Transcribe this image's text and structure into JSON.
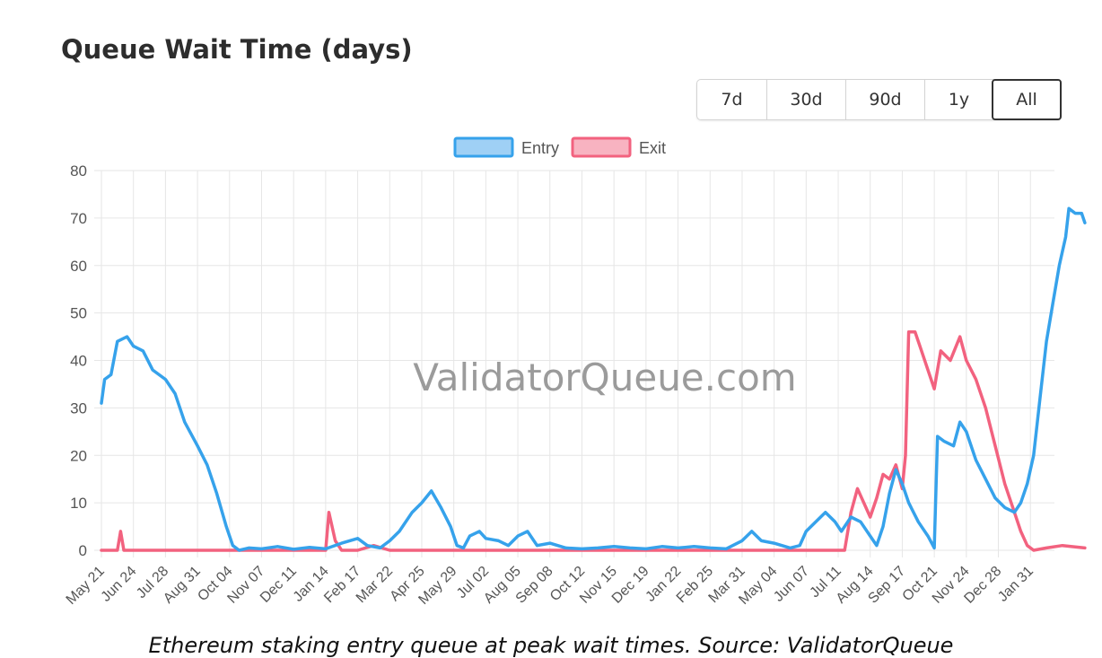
{
  "header": {
    "title": "Queue Wait Time (days)"
  },
  "range_buttons": [
    {
      "label": "7d",
      "active": false
    },
    {
      "label": "30d",
      "active": false
    },
    {
      "label": "90d",
      "active": false
    },
    {
      "label": "1y",
      "active": false
    },
    {
      "label": "All",
      "active": true
    }
  ],
  "watermark": "ValidatorQueue.com",
  "caption": "Ethereum staking entry queue at peak wait times. Source: ValidatorQueue",
  "colors": {
    "entry": "#36a2eb",
    "exit": "#f2627f",
    "grid": "#e6e6e6",
    "axis_text": "#555555"
  },
  "chart_data": {
    "type": "line",
    "ylim": [
      0,
      80
    ],
    "y_ticks": [
      0,
      10,
      20,
      30,
      40,
      50,
      60,
      70,
      80
    ],
    "x_tick_labels": [
      "May 21",
      "Jun 24",
      "Jul 28",
      "Aug 31",
      "Oct 04",
      "Nov 07",
      "Dec 11",
      "Jan 14",
      "Feb 17",
      "Mar 22",
      "Apr 25",
      "May 29",
      "Jul 02",
      "Aug 05",
      "Sep 08",
      "Oct 12",
      "Nov 15",
      "Dec 19",
      "Jan 22",
      "Feb 25",
      "Mar 31",
      "May 04",
      "Jun 07",
      "Jul 11",
      "Aug 14",
      "Sep 17",
      "Oct 21",
      "Nov 24",
      "Dec 28",
      "Jan 31"
    ],
    "legend_position": "top",
    "grid": true,
    "series": [
      {
        "name": "Entry",
        "points": [
          [
            0,
            31
          ],
          [
            0.1,
            36
          ],
          [
            0.3,
            37
          ],
          [
            0.5,
            44
          ],
          [
            0.8,
            45
          ],
          [
            1,
            43
          ],
          [
            1.3,
            42
          ],
          [
            1.6,
            38
          ],
          [
            2,
            36
          ],
          [
            2.3,
            33
          ],
          [
            2.6,
            27
          ],
          [
            3,
            22
          ],
          [
            3.3,
            18
          ],
          [
            3.6,
            12
          ],
          [
            3.9,
            5
          ],
          [
            4.1,
            1
          ],
          [
            4.3,
            0
          ],
          [
            4.6,
            0.5
          ],
          [
            5,
            0.3
          ],
          [
            5.5,
            0.8
          ],
          [
            6,
            0.2
          ],
          [
            6.5,
            0.6
          ],
          [
            7,
            0.3
          ],
          [
            7.5,
            1.5
          ],
          [
            8,
            2.5
          ],
          [
            8.3,
            1
          ],
          [
            8.7,
            0.5
          ],
          [
            9,
            2
          ],
          [
            9.3,
            4
          ],
          [
            9.7,
            8
          ],
          [
            10,
            10
          ],
          [
            10.3,
            12.5
          ],
          [
            10.6,
            9
          ],
          [
            10.9,
            5
          ],
          [
            11.1,
            1
          ],
          [
            11.3,
            0.5
          ],
          [
            11.5,
            3
          ],
          [
            11.8,
            4
          ],
          [
            12,
            2.5
          ],
          [
            12.4,
            2
          ],
          [
            12.7,
            1
          ],
          [
            13,
            3
          ],
          [
            13.3,
            4
          ],
          [
            13.6,
            1
          ],
          [
            14,
            1.5
          ],
          [
            14.5,
            0.5
          ],
          [
            15,
            0.3
          ],
          [
            15.5,
            0.5
          ],
          [
            16,
            0.8
          ],
          [
            16.5,
            0.5
          ],
          [
            17,
            0.3
          ],
          [
            17.5,
            0.8
          ],
          [
            18,
            0.5
          ],
          [
            18.5,
            0.8
          ],
          [
            19,
            0.5
          ],
          [
            19.5,
            0.3
          ],
          [
            20,
            2
          ],
          [
            20.3,
            4
          ],
          [
            20.6,
            2
          ],
          [
            21,
            1.5
          ],
          [
            21.5,
            0.5
          ],
          [
            21.8,
            1
          ],
          [
            22,
            4
          ],
          [
            22.3,
            6
          ],
          [
            22.6,
            8
          ],
          [
            22.9,
            6
          ],
          [
            23.1,
            4
          ],
          [
            23.4,
            7
          ],
          [
            23.7,
            6
          ],
          [
            24,
            3
          ],
          [
            24.2,
            1
          ],
          [
            24.4,
            5
          ],
          [
            24.6,
            12
          ],
          [
            24.8,
            17
          ],
          [
            25,
            14
          ],
          [
            25.2,
            10
          ],
          [
            25.5,
            6
          ],
          [
            25.8,
            3
          ],
          [
            26,
            0.5
          ],
          [
            26.1,
            24
          ],
          [
            26.3,
            23
          ],
          [
            26.6,
            22
          ],
          [
            26.8,
            27
          ],
          [
            27,
            25
          ],
          [
            27.3,
            19
          ],
          [
            27.6,
            15
          ],
          [
            27.9,
            11
          ],
          [
            28.2,
            9
          ],
          [
            28.5,
            8
          ],
          [
            28.7,
            10
          ],
          [
            28.9,
            14
          ],
          [
            29.1,
            20
          ],
          [
            29.3,
            32
          ],
          [
            29.5,
            44
          ],
          [
            29.7,
            52
          ],
          [
            29.9,
            60
          ],
          [
            30.1,
            66
          ],
          [
            30.2,
            72
          ],
          [
            30.4,
            71
          ],
          [
            30.6,
            71
          ],
          [
            30.7,
            69
          ]
        ]
      },
      {
        "name": "Exit",
        "points": [
          [
            0,
            0
          ],
          [
            0.5,
            0
          ],
          [
            0.6,
            4
          ],
          [
            0.7,
            0
          ],
          [
            1,
            0
          ],
          [
            5,
            0
          ],
          [
            7,
            0
          ],
          [
            7.1,
            8
          ],
          [
            7.3,
            2
          ],
          [
            7.5,
            0
          ],
          [
            8,
            0
          ],
          [
            8.5,
            1
          ],
          [
            9,
            0
          ],
          [
            10,
            0
          ],
          [
            12,
            0
          ],
          [
            16,
            0
          ],
          [
            20,
            0
          ],
          [
            22,
            0
          ],
          [
            23.2,
            0
          ],
          [
            23.4,
            8
          ],
          [
            23.6,
            13
          ],
          [
            23.8,
            10
          ],
          [
            24,
            7
          ],
          [
            24.2,
            11
          ],
          [
            24.4,
            16
          ],
          [
            24.6,
            15
          ],
          [
            24.8,
            18
          ],
          [
            25,
            13
          ],
          [
            25.1,
            20
          ],
          [
            25.2,
            46
          ],
          [
            25.4,
            46
          ],
          [
            25.6,
            42
          ],
          [
            25.8,
            38
          ],
          [
            26,
            34
          ],
          [
            26.2,
            42
          ],
          [
            26.5,
            40
          ],
          [
            26.8,
            45
          ],
          [
            27,
            40
          ],
          [
            27.3,
            36
          ],
          [
            27.6,
            30
          ],
          [
            27.9,
            22
          ],
          [
            28.2,
            14
          ],
          [
            28.5,
            8
          ],
          [
            28.7,
            4
          ],
          [
            28.9,
            1
          ],
          [
            29.1,
            0
          ],
          [
            29.5,
            0.5
          ],
          [
            30,
            1
          ],
          [
            30.7,
            0.5
          ]
        ]
      }
    ]
  }
}
